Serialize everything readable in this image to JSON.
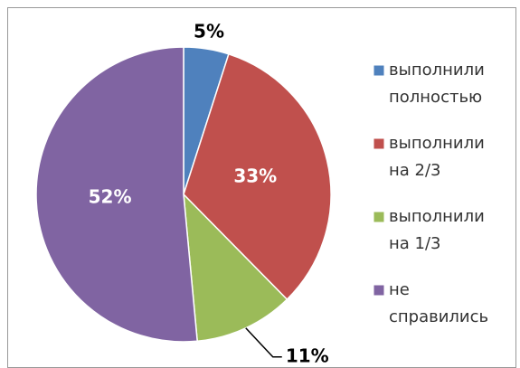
{
  "chart_data": {
    "type": "pie",
    "categories": [
      "выполнили полностью",
      "выполнили на 2/3",
      "выполнили на 1/3",
      "не справились"
    ],
    "values": [
      5,
      33,
      11,
      52
    ],
    "value_labels": [
      "5%",
      "33%",
      "11%",
      "52%"
    ],
    "colors": [
      "#4f81bd",
      "#c0504d",
      "#9bbb59",
      "#8064a2"
    ],
    "legend": "right"
  }
}
